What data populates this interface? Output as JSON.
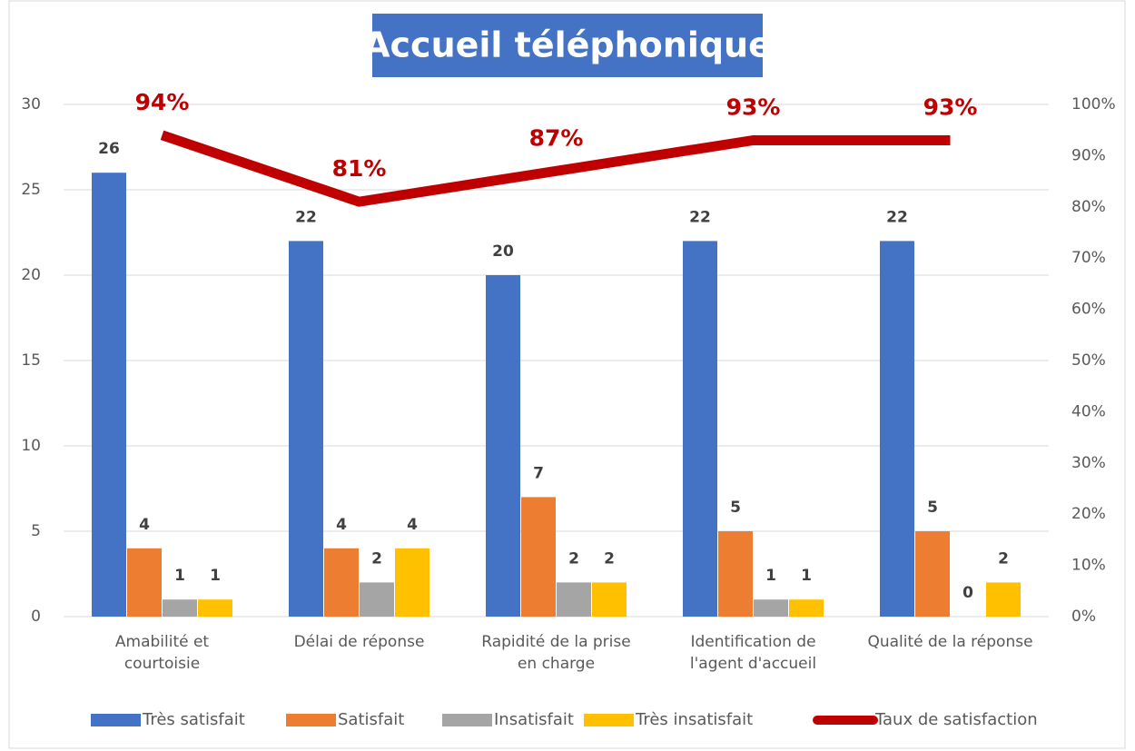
{
  "chart_data": {
    "type": "bar",
    "title": "Accueil téléphonique",
    "categories": [
      "Amabilité et courtoisie",
      "Délai de réponse",
      "Rapidité de la prise en charge",
      "Identification de l'agent d'accueil",
      "Qualité de la réponse"
    ],
    "series": [
      {
        "name": "Très satisfait",
        "color": "#4472c4",
        "values": [
          26,
          22,
          20,
          22,
          22
        ]
      },
      {
        "name": "Satisfait",
        "color": "#ed7d31",
        "values": [
          4,
          4,
          7,
          5,
          5
        ]
      },
      {
        "name": "Insatisfait",
        "color": "#a5a5a5",
        "values": [
          1,
          2,
          2,
          1,
          0
        ]
      },
      {
        "name": "Très insatisfait",
        "color": "#ffc000",
        "values": [
          1,
          4,
          2,
          1,
          2
        ]
      },
      {
        "name": "Taux de satisfaction",
        "type": "line",
        "axis": "y2",
        "color": "#c00000",
        "values": [
          94,
          81,
          87,
          93,
          93
        ],
        "value_labels": [
          "94%",
          "81%",
          "87%",
          "93%",
          "93%"
        ]
      }
    ],
    "ylim": [
      0,
      30
    ],
    "yticks": [
      0,
      5,
      10,
      15,
      20,
      25,
      30
    ],
    "y2lim": [
      0,
      100
    ],
    "y2ticks": [
      {
        "value": 0,
        "label": "0%"
      },
      {
        "value": 10,
        "label": "10%"
      },
      {
        "value": 20,
        "label": "20%"
      },
      {
        "value": 30,
        "label": "30%"
      },
      {
        "value": 40,
        "label": "40%"
      },
      {
        "value": 50,
        "label": "50%"
      },
      {
        "value": 60,
        "label": "60%"
      },
      {
        "value": 70,
        "label": "70%"
      },
      {
        "value": 80,
        "label": "80%"
      },
      {
        "value": 90,
        "label": "90%"
      },
      {
        "value": 100,
        "label": "100%"
      }
    ],
    "grid": true,
    "legend": "bottom"
  }
}
